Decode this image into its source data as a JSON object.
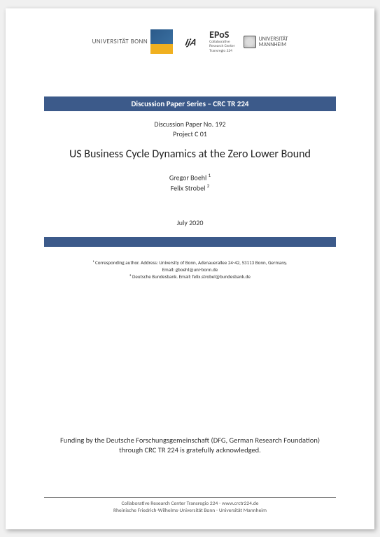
{
  "logos": {
    "bonn": {
      "text": "UNIVERSITÄT BONN",
      "color_top": "#2b5a8a",
      "color_bottom": "#f0b020"
    },
    "ija": {
      "text": "IjA"
    },
    "epos": {
      "title": "EPoS",
      "sub1": "Collaborative",
      "sub2": "Research Center",
      "sub3": "Transregio 224"
    },
    "mannheim": {
      "line1": "UNIVERSITÄT",
      "line2": "MANNHEIM"
    }
  },
  "series": {
    "label": "Discussion Paper Series – CRC TR 224",
    "bg_color": "#3c5a8a",
    "text_color": "#ffffff"
  },
  "paper": {
    "number": "Discussion Paper No. 192",
    "project": "Project C 01",
    "title": "US Business Cycle Dynamics at the Zero Lower Bound"
  },
  "authors": [
    {
      "name": "Gregor Boehl",
      "note": "1"
    },
    {
      "name": "Felix Strobel",
      "note": "2"
    }
  ],
  "date": "July 2020",
  "affiliations": {
    "a1": "¹ Corresponding author. Address: University of Bonn, Adenauerallee 24-42, 53113 Bonn, Germany.",
    "a1_email": "Email: gboehl@uni-bonn.de",
    "a2": "² Deutsche Bundesbank. Email: felix.strobel@bundesbank.de"
  },
  "funding": {
    "line1": "Funding by the Deutsche Forschungsgemeinschaft (DFG, German Research Foundation)",
    "line2": "through CRC TR 224 is gratefully acknowledged."
  },
  "footer": {
    "line1": "Collaborative Research Center Transregio 224 - www.crctr224.de",
    "line2": "Rheinische Friedrich-Wilhelms-Universität Bonn - Universität Mannheim"
  }
}
